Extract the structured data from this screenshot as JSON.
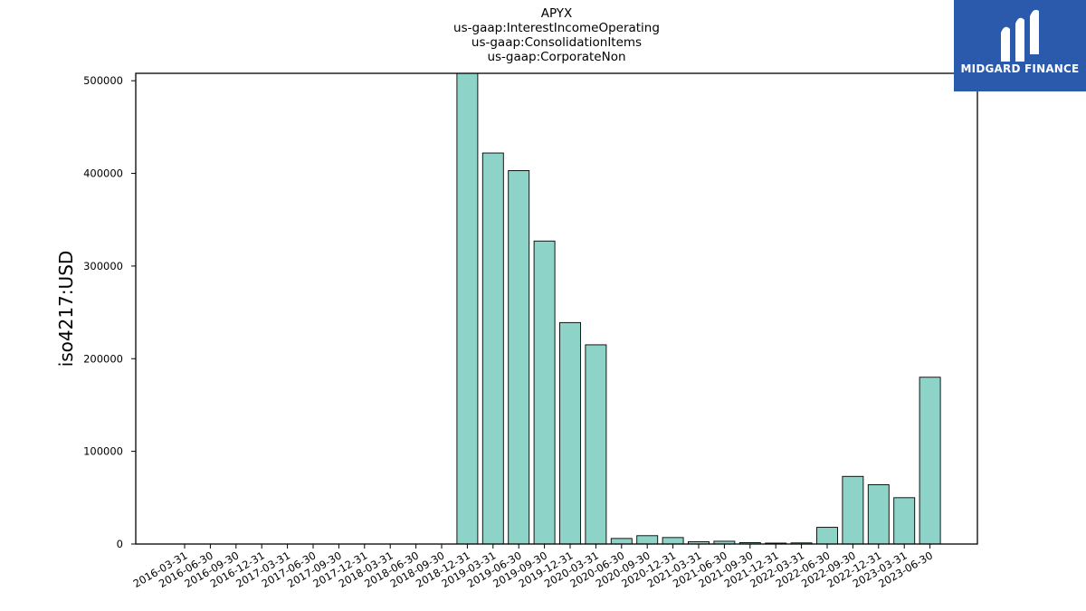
{
  "chart_data": {
    "type": "bar",
    "title_lines": [
      "APYX",
      "us-gaap:InterestIncomeOperating",
      "us-gaap:ConsolidationItems",
      "us-gaap:CorporateNon"
    ],
    "ylabel": "iso4217:USD",
    "xlabel": "",
    "ylim": [
      0,
      508000
    ],
    "yticks": [
      0,
      100000,
      200000,
      300000,
      400000,
      500000
    ],
    "categories": [
      "2016-03-31",
      "2016-06-30",
      "2016-09-30",
      "2016-12-31",
      "2017-03-31",
      "2017-06-30",
      "2017-09-30",
      "2017-12-31",
      "2018-03-31",
      "2018-06-30",
      "2018-09-30",
      "2018-12-31",
      "2019-03-31",
      "2019-06-30",
      "2019-09-30",
      "2019-12-31",
      "2020-03-31",
      "2020-06-30",
      "2020-09-30",
      "2020-12-31",
      "2021-03-31",
      "2021-06-30",
      "2021-09-30",
      "2021-12-31",
      "2022-03-31",
      "2022-06-30",
      "2022-09-30",
      "2022-12-31",
      "2023-03-31",
      "2023-06-30"
    ],
    "values": [
      null,
      null,
      null,
      null,
      null,
      null,
      null,
      null,
      null,
      null,
      null,
      510000,
      422000,
      403000,
      327000,
      239000,
      215000,
      6000,
      9000,
      7000,
      2500,
      3000,
      1500,
      1000,
      1200,
      18000,
      73000,
      64000,
      50000,
      180000
    ],
    "bar_color": "#8dd3c7",
    "bar_edge_color": "#000000",
    "grid": false,
    "legend": "none"
  },
  "logo": {
    "text": "MIDGARD FINANCE",
    "background": "#2b5aad",
    "icon": "midgard-logo-icon"
  }
}
